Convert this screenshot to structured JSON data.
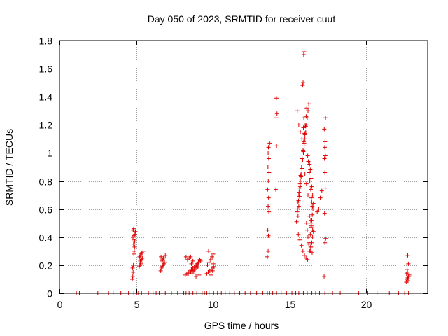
{
  "chart_data": {
    "type": "scatter",
    "title": "Day 050 of 2023, SRMTID for receiver cuut",
    "xlabel": "GPS time / hours",
    "ylabel": "SRMTID / TECUs",
    "xlim": [
      0,
      24
    ],
    "ylim": [
      0,
      1.8
    ],
    "xticks": [
      0,
      5,
      10,
      15,
      20
    ],
    "xtick_labels": [
      "0",
      "5",
      "10",
      "15",
      "20"
    ],
    "yticks": [
      0,
      0.2,
      0.4,
      0.6,
      0.8,
      1,
      1.2,
      1.4,
      1.6,
      1.8
    ],
    "ytick_labels": [
      "0",
      "0.2",
      "0.4",
      "0.6",
      "0.8",
      "1",
      "1.2",
      "1.4",
      "1.6",
      "1.8"
    ],
    "grid": true,
    "marker": "+",
    "color": "#e00000",
    "series": [
      {
        "name": "SRMTID",
        "x": [
          1.1,
          1.3,
          1.8,
          2.5,
          3.2,
          3.5,
          4.0,
          4.5,
          4.85,
          5.05,
          5.15,
          5.35,
          5.8,
          6.1,
          6.3,
          6.5,
          6.9,
          7.3,
          7.7,
          8.1,
          8.25,
          8.45,
          8.7,
          8.95,
          9.3,
          9.45,
          9.6,
          9.75,
          10.05,
          10.3,
          10.55,
          10.8,
          11.1,
          11.4,
          11.75,
          12.1,
          12.45,
          12.85,
          13.25,
          13.55,
          13.7,
          13.9,
          14.15,
          14.45,
          14.8,
          15.15,
          15.4,
          15.6,
          15.9,
          16.15,
          16.45,
          16.7,
          16.95,
          17.3,
          17.5,
          17.8,
          18.3,
          19.5,
          20.1,
          20.7,
          21.5,
          22.1,
          22.5,
          22.75,
          4.75,
          4.78,
          4.8,
          4.77,
          4.82,
          4.85,
          4.88,
          4.9,
          4.83,
          4.86,
          4.79,
          4.92,
          4.95,
          4.8,
          4.84,
          4.87,
          4.91,
          5.2,
          5.25,
          5.3,
          5.35,
          5.4,
          5.22,
          5.28,
          5.33,
          5.38,
          5.45,
          5.3,
          5.27,
          6.6,
          6.65,
          6.7,
          6.75,
          6.8,
          6.85,
          6.68,
          6.72,
          6.78,
          6.62,
          6.9,
          8.2,
          8.3,
          8.4,
          8.5,
          8.6,
          8.7,
          8.8,
          8.9,
          9.0,
          9.1,
          9.2,
          8.35,
          8.45,
          8.55,
          8.65,
          8.75,
          8.85,
          8.95,
          9.05,
          9.15,
          8.25,
          8.5,
          8.8,
          9.0,
          8.6,
          8.7,
          8.9,
          9.1,
          8.4,
          8.55,
          8.68,
          8.82,
          8.95,
          9.6,
          9.7,
          9.8,
          9.9,
          10.0,
          10.05,
          9.65,
          9.75,
          9.85,
          9.95,
          10.02,
          9.72,
          9.88,
          9.98,
          10.03,
          13.55,
          13.6,
          13.62,
          13.58,
          13.65,
          13.6,
          13.63,
          13.57,
          13.61,
          13.66,
          13.59,
          13.64,
          13.6,
          13.62,
          13.7,
          14.1,
          14.15,
          14.12,
          14.18,
          14.14,
          15.45,
          15.5,
          15.55,
          15.6,
          15.65,
          15.7,
          15.75,
          15.8,
          15.85,
          15.9,
          15.95,
          16.0,
          16.05,
          16.1,
          16.15,
          16.2,
          16.25,
          16.3,
          16.35,
          16.4,
          16.45,
          16.5,
          16.55,
          15.52,
          15.58,
          15.62,
          15.68,
          15.72,
          15.78,
          15.82,
          15.88,
          15.92,
          15.98,
          16.02,
          16.08,
          16.12,
          16.18,
          16.22,
          16.28,
          16.32,
          16.38,
          16.42,
          16.48,
          15.55,
          15.6,
          15.65,
          15.7,
          15.75,
          15.8,
          15.85,
          15.9,
          15.95,
          16.0,
          16.05,
          16.1,
          16.15,
          16.2,
          16.25,
          16.3,
          16.35,
          16.4,
          16.45,
          15.5,
          15.6,
          15.7,
          15.8,
          15.9,
          16.0,
          16.1,
          16.2,
          16.3,
          16.4,
          16.5,
          15.57,
          15.67,
          15.77,
          15.87,
          15.97,
          16.07,
          16.17,
          16.27,
          16.37,
          16.47,
          15.85,
          15.88,
          15.92,
          15.95,
          15.9,
          15.93,
          16.35,
          16.4,
          16.45,
          16.5,
          16.55,
          16.42,
          16.38,
          16.48,
          16.52,
          16.44,
          16.8,
          16.9,
          17.0,
          17.1,
          17.25,
          17.3,
          17.35,
          17.28,
          17.32,
          17.3,
          17.27,
          17.33,
          17.29,
          17.31,
          17.26,
          17.34,
          22.6,
          22.65,
          22.7,
          22.75,
          22.8,
          22.62,
          22.68,
          22.72,
          22.78,
          22.66,
          22.74,
          22.7,
          22.64
        ],
        "y": [
          0,
          0,
          0,
          0,
          0,
          0,
          0,
          0,
          0,
          0,
          0,
          0,
          0,
          0,
          0,
          0,
          0,
          0,
          0,
          0,
          0,
          0,
          0,
          0,
          0,
          0,
          0,
          0,
          0,
          0,
          0,
          0,
          0,
          0,
          0,
          0,
          0,
          0,
          0,
          0,
          0,
          0,
          0,
          0,
          0,
          0,
          0,
          0,
          0,
          0,
          0,
          0,
          0,
          0,
          0,
          0,
          0,
          0,
          0,
          0,
          0,
          0,
          0,
          0,
          0.1,
          0.12,
          0.15,
          0.18,
          0.2,
          0.28,
          0.3,
          0.33,
          0.35,
          0.38,
          0.4,
          0.42,
          0.44,
          0.45,
          0.46,
          0.41,
          0.37,
          0.19,
          0.2,
          0.22,
          0.24,
          0.25,
          0.26,
          0.27,
          0.28,
          0.29,
          0.3,
          0.21,
          0.23,
          0.16,
          0.18,
          0.19,
          0.2,
          0.21,
          0.22,
          0.23,
          0.24,
          0.25,
          0.26,
          0.27,
          0.13,
          0.14,
          0.15,
          0.16,
          0.17,
          0.18,
          0.19,
          0.2,
          0.21,
          0.22,
          0.23,
          0.24,
          0.25,
          0.26,
          0.14,
          0.16,
          0.18,
          0.2,
          0.22,
          0.24,
          0.26,
          0.15,
          0.17,
          0.19,
          0.21,
          0.23,
          0.12,
          0.13,
          0.14,
          0.15,
          0.16,
          0.17,
          0.18,
          0.14,
          0.15,
          0.16,
          0.17,
          0.18,
          0.19,
          0.2,
          0.22,
          0.24,
          0.26,
          0.28,
          0.3,
          0.13,
          0.16,
          0.21,
          0.26,
          0.3,
          0.41,
          0.45,
          0.58,
          0.62,
          0.68,
          0.74,
          0.8,
          0.86,
          0.9,
          0.96,
          1.0,
          1.04,
          1.07,
          0.74,
          1.05,
          1.25,
          1.28,
          1.39,
          0.51,
          0.58,
          0.65,
          0.7,
          0.75,
          0.8,
          0.85,
          0.9,
          0.95,
          1.0,
          1.05,
          1.1,
          1.15,
          1.2,
          1.25,
          1.3,
          1.35,
          0.92,
          0.88,
          0.82,
          0.76,
          0.7,
          0.64,
          0.6,
          0.66,
          0.72,
          0.78,
          0.84,
          0.9,
          0.96,
          1.02,
          1.08,
          1.14,
          1.2,
          1.26,
          1.32,
          0.98,
          0.94,
          0.86,
          0.8,
          0.74,
          0.68,
          0.62,
          0.55,
          0.62,
          0.69,
          0.76,
          0.83,
          0.89,
          0.95,
          1.01,
          1.07,
          1.13,
          1.19,
          0.5,
          0.45,
          0.4,
          0.35,
          0.3,
          0.42,
          0.47,
          0.52,
          1.3,
          1.2,
          1.15,
          1.1,
          1.0,
          0.85,
          0.78,
          0.7,
          0.55,
          0.5,
          0.45,
          0.42,
          0.38,
          0.34,
          0.3,
          0.27,
          0.25,
          0.24,
          0.36,
          0.33,
          0.29,
          1.48,
          1.5,
          1.7,
          1.72,
          1.18,
          1.25,
          0.3,
          0.33,
          0.36,
          0.4,
          0.44,
          0.48,
          0.52,
          0.56,
          0.6,
          0.65,
          0.58,
          0.6,
          0.68,
          0.73,
          0.12,
          0.36,
          0.39,
          0.57,
          0.75,
          0.86,
          0.96,
          0.98,
          1.04,
          1.08,
          1.17,
          1.25,
          0.08,
          0.1,
          0.11,
          0.12,
          0.13,
          0.14,
          0.15,
          0.09,
          0.12,
          0.17,
          0.21,
          0.27,
          0.1
        ]
      }
    ]
  }
}
